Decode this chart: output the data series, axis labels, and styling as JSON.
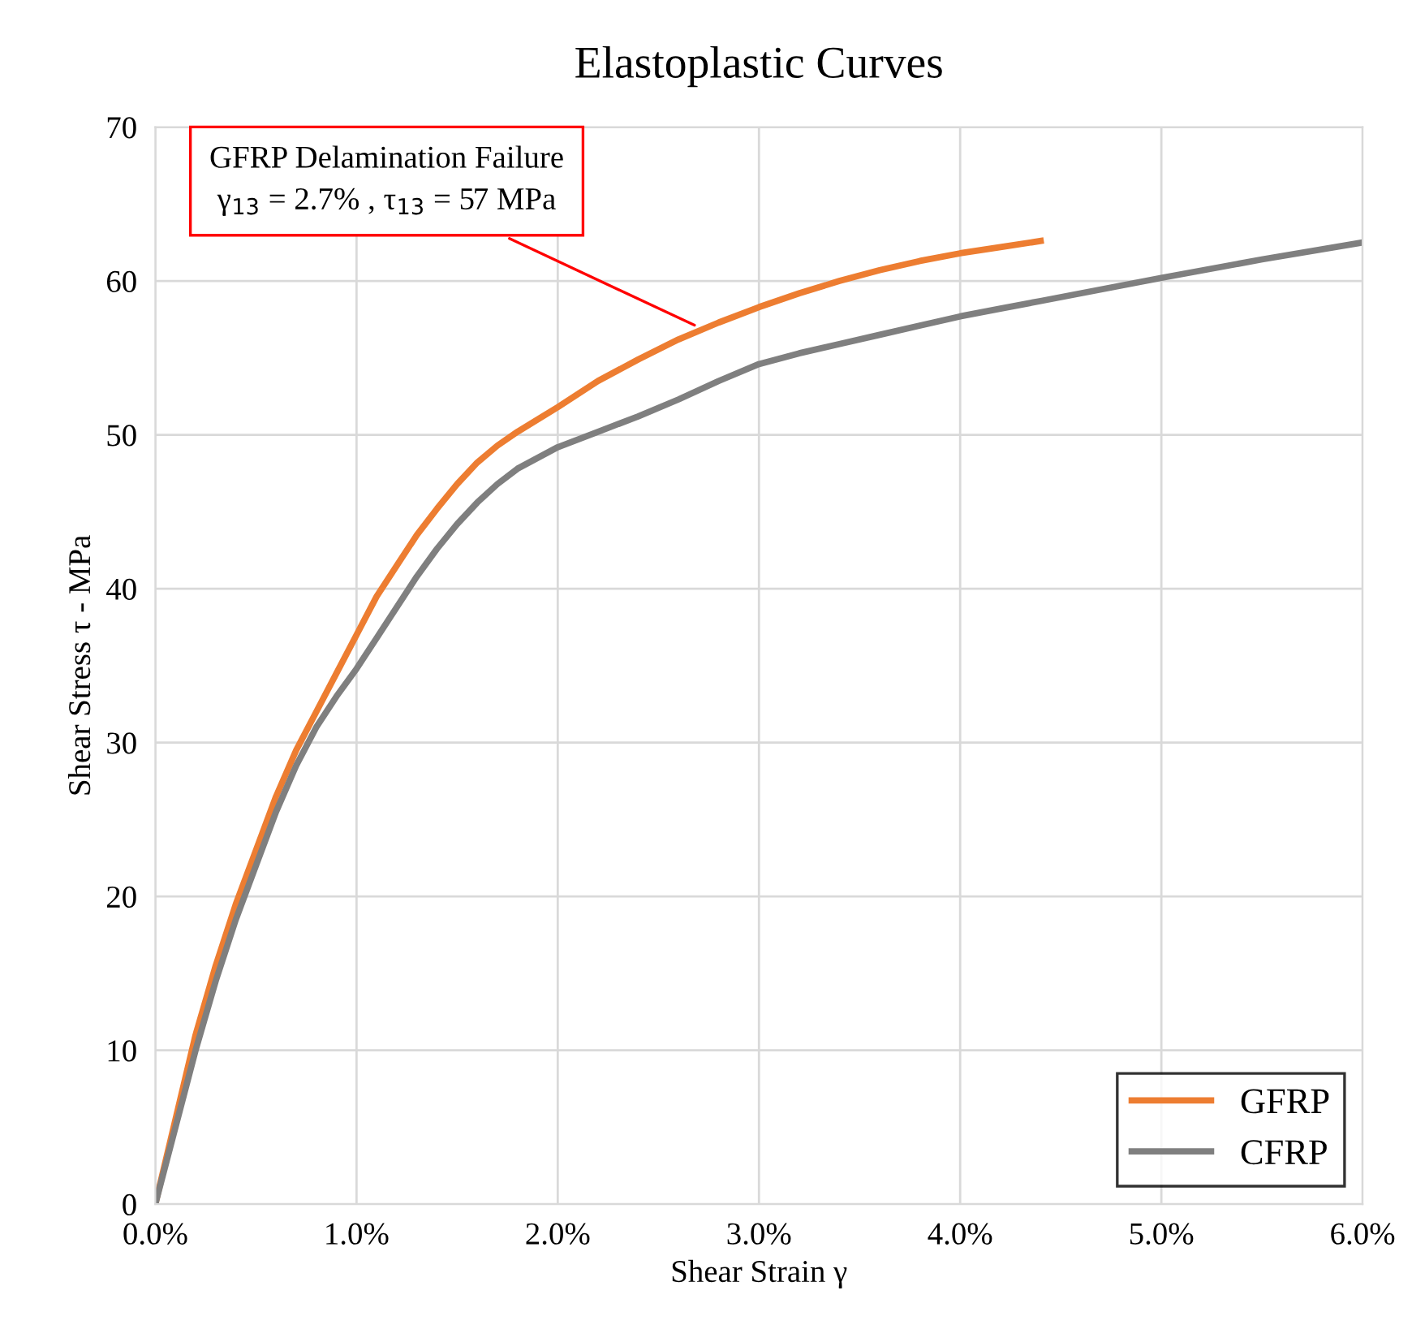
{
  "chart_data": {
    "type": "line",
    "title": "Elastoplastic Curves",
    "xlabel": "Shear Strain γ",
    "ylabel": "Shear Stress τ - MPa",
    "series": [
      {
        "name": "GFRP",
        "color": "#ed7d31",
        "x": [
          0,
          0.1,
          0.2,
          0.3,
          0.4,
          0.5,
          0.6,
          0.7,
          0.8,
          0.9,
          1.0,
          1.1,
          1.2,
          1.3,
          1.4,
          1.5,
          1.6,
          1.7,
          1.8,
          2.0,
          2.2,
          2.4,
          2.6,
          2.8,
          3.0,
          3.2,
          3.4,
          3.6,
          3.8,
          4.0,
          4.2,
          4.4
        ],
        "values": [
          0,
          5.5,
          11,
          15.5,
          19.5,
          23,
          26.5,
          29.5,
          32,
          34.5,
          37,
          39.5,
          41.5,
          43.5,
          45.2,
          46.8,
          48.2,
          49.3,
          50.2,
          51.8,
          53.5,
          54.9,
          56.2,
          57.3,
          58.3,
          59.2,
          60.0,
          60.7,
          61.3,
          61.8,
          62.2,
          62.6
        ]
      },
      {
        "name": "CFRP",
        "color": "#7f7f7f",
        "x": [
          0,
          0.1,
          0.2,
          0.3,
          0.4,
          0.5,
          0.6,
          0.7,
          0.8,
          0.9,
          1.0,
          1.1,
          1.2,
          1.3,
          1.4,
          1.5,
          1.6,
          1.7,
          1.8,
          2.0,
          2.2,
          2.4,
          2.6,
          2.8,
          3.0,
          3.2,
          3.4,
          3.6,
          3.8,
          4.0,
          4.2,
          4.4,
          4.6,
          4.8,
          5.0,
          5.5,
          6.0
        ],
        "values": [
          0,
          5,
          10,
          14.5,
          18.5,
          22,
          25.5,
          28.5,
          31,
          33,
          34.8,
          36.8,
          38.8,
          40.8,
          42.6,
          44.2,
          45.6,
          46.8,
          47.8,
          49.2,
          50.2,
          51.2,
          52.3,
          53.5,
          54.6,
          55.3,
          55.9,
          56.5,
          57.1,
          57.7,
          58.2,
          58.7,
          59.2,
          59.7,
          60.2,
          61.4,
          62.5
        ]
      }
    ],
    "xlim": [
      0,
      6
    ],
    "xticks": [
      {
        "value": 0,
        "label": "0.0%"
      },
      {
        "value": 1,
        "label": "1.0%"
      },
      {
        "value": 2,
        "label": "2.0%"
      },
      {
        "value": 3,
        "label": "3.0%"
      },
      {
        "value": 4,
        "label": "4.0%"
      },
      {
        "value": 5,
        "label": "5.0%"
      },
      {
        "value": 6,
        "label": "6.0%"
      }
    ],
    "ylim": [
      0,
      70
    ],
    "yticks": [
      0,
      10,
      20,
      30,
      40,
      50,
      60,
      70
    ],
    "annotations": [
      {
        "text": "GFRP Delamination Failure\nγ$_{13}$ = 2.7% , τ$_{13}$ = 57 MPa",
        "x": 2.7,
        "y": 57
      }
    ],
    "grid": true,
    "legend": "bottom right",
    "marker": "none",
    "line_style": "solid"
  }
}
